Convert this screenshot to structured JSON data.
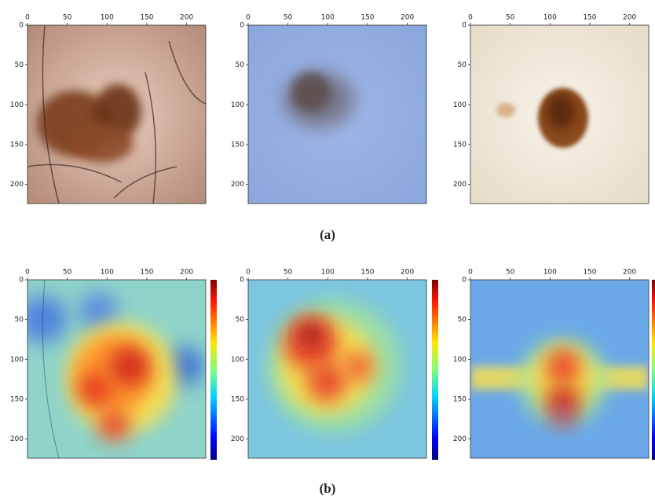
{
  "figure": {
    "xticks": [
      0,
      50,
      100,
      150,
      200
    ],
    "yticks": [
      0,
      50,
      100,
      150,
      200
    ],
    "captions": [
      "(a)",
      "(b)"
    ]
  }
}
